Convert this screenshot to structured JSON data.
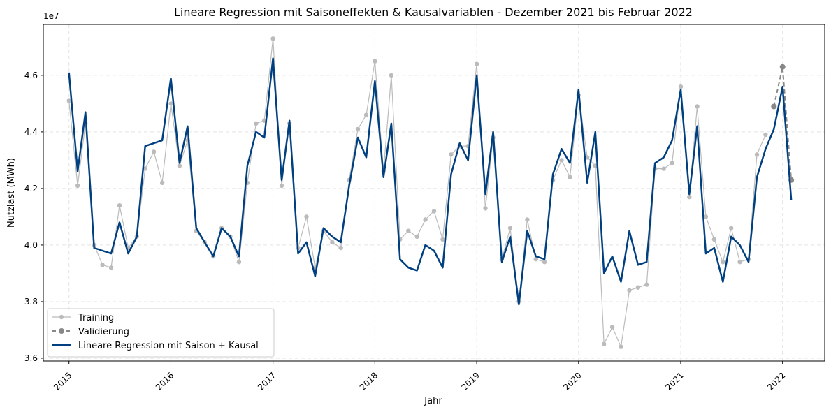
{
  "chart_data": {
    "type": "line",
    "title": "Lineare Regression mit Saisoneffekten & Kausalvariablen - Dezember 2021 bis Februar 2022",
    "xlabel": "Jahr",
    "ylabel": "Nutzlast (MWh)",
    "y_offset_label": "1e7",
    "x_domain": [
      "2014-10-01",
      "2022-06-01"
    ],
    "ylim": [
      3.59,
      4.78
    ],
    "y_scale": 10000000,
    "x_ticks": [
      {
        "date": "2015-01-01",
        "label": "2015"
      },
      {
        "date": "2016-01-01",
        "label": "2016"
      },
      {
        "date": "2017-01-01",
        "label": "2017"
      },
      {
        "date": "2018-01-01",
        "label": "2018"
      },
      {
        "date": "2019-01-01",
        "label": "2019"
      },
      {
        "date": "2020-01-01",
        "label": "2020"
      },
      {
        "date": "2021-01-01",
        "label": "2021"
      },
      {
        "date": "2022-01-01",
        "label": "2022"
      }
    ],
    "y_ticks": [
      {
        "value": 3.6,
        "label": "3.6"
      },
      {
        "value": 3.8,
        "label": "3.8"
      },
      {
        "value": 4.0,
        "label": "4.0"
      },
      {
        "value": 4.2,
        "label": "4.2"
      },
      {
        "value": 4.4,
        "label": "4.4"
      },
      {
        "value": 4.6,
        "label": "4.6"
      }
    ],
    "grid": true,
    "legend_position": "lower-left",
    "series": [
      {
        "name": "Training",
        "color": "#bbbbbb",
        "style": "solid-with-markers",
        "start": "2015-01",
        "values": [
          4.51,
          4.21,
          4.43,
          4.0,
          3.93,
          3.92,
          4.14,
          3.99,
          4.03,
          4.27,
          4.33,
          4.22,
          4.5,
          4.28,
          4.37,
          4.05,
          4.01,
          3.96,
          4.06,
          4.03,
          3.94,
          4.22,
          4.43,
          4.44,
          4.73,
          4.21,
          4.43,
          3.99,
          4.1,
          3.92,
          4.05,
          4.01,
          3.99,
          4.23,
          4.41,
          4.46,
          4.65,
          4.26,
          4.6,
          4.02,
          4.05,
          4.03,
          4.09,
          4.12,
          4.02,
          4.32,
          4.35,
          4.35,
          4.64,
          4.13,
          4.38,
          3.95,
          4.06,
          3.8,
          4.09,
          3.95,
          3.94,
          4.23,
          4.3,
          4.24,
          4.53,
          4.31,
          4.28,
          3.65,
          3.71,
          3.64,
          3.84,
          3.85,
          3.86,
          4.27,
          4.27,
          4.29,
          4.56,
          4.17,
          4.49,
          4.1,
          4.02,
          3.94,
          4.06,
          3.94,
          3.95,
          4.32,
          4.39
        ]
      },
      {
        "name": "Validierung",
        "color": "#888888",
        "style": "dashed-with-markers",
        "start": "2021-12",
        "values": [
          4.49,
          4.63,
          4.23
        ]
      },
      {
        "name": "Lineare Regression mit Saison + Kausal",
        "color": "#004080",
        "style": "solid-thick",
        "start": "2015-01",
        "values": [
          4.61,
          4.26,
          4.47,
          3.99,
          3.98,
          3.97,
          4.08,
          3.97,
          4.03,
          4.35,
          4.36,
          4.37,
          4.59,
          4.29,
          4.42,
          4.06,
          4.01,
          3.96,
          4.06,
          4.03,
          3.96,
          4.28,
          4.4,
          4.38,
          4.66,
          4.23,
          4.44,
          3.97,
          4.01,
          3.89,
          4.06,
          4.03,
          4.01,
          4.21,
          4.38,
          4.31,
          4.58,
          4.24,
          4.43,
          3.95,
          3.92,
          3.91,
          4.0,
          3.98,
          3.92,
          4.25,
          4.36,
          4.3,
          4.6,
          4.18,
          4.4,
          3.94,
          4.03,
          3.79,
          4.05,
          3.96,
          3.95,
          4.25,
          4.34,
          4.29,
          4.55,
          4.22,
          4.4,
          3.9,
          3.96,
          3.87,
          4.05,
          3.93,
          3.94,
          4.29,
          4.31,
          4.37,
          4.55,
          4.18,
          4.42,
          3.97,
          3.99,
          3.87,
          4.03,
          4.0,
          3.94,
          4.24,
          4.34,
          4.41,
          4.56,
          4.16
        ]
      }
    ]
  }
}
